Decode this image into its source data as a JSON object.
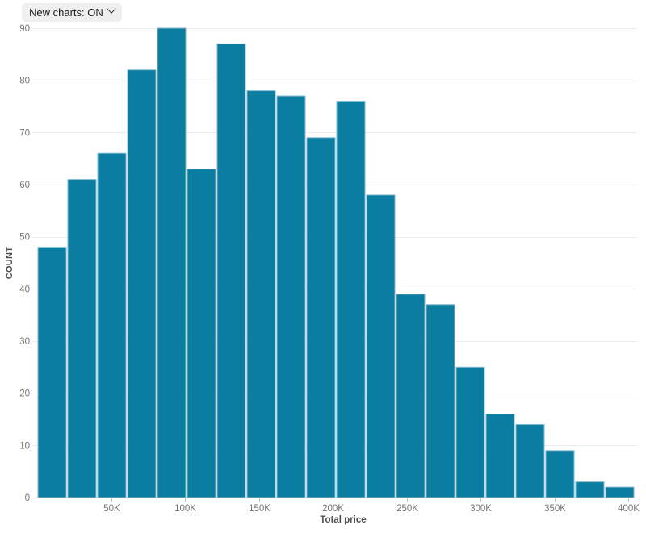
{
  "controls": {
    "new_charts": {
      "label": "New charts: ON",
      "chevron_icon": "chevron-down"
    }
  },
  "chart_data": {
    "type": "bar",
    "subtype": "histogram",
    "title": "",
    "xlabel": "Total price",
    "ylabel": "COUNT",
    "bin_start": 0,
    "bin_size": 20000,
    "values": [
      48,
      61,
      66,
      82,
      90,
      63,
      87,
      78,
      77,
      69,
      76,
      58,
      39,
      37,
      25,
      16,
      14,
      9,
      3,
      2
    ],
    "bin_labels": [
      "0-20K",
      "20K-40K",
      "40K-60K",
      "60K-80K",
      "80K-100K",
      "100K-120K",
      "120K-140K",
      "140K-160K",
      "160K-180K",
      "180K-200K",
      "200K-220K",
      "220K-240K",
      "240K-260K",
      "260K-280K",
      "280K-300K",
      "300K-320K",
      "320K-340K",
      "340K-360K",
      "360K-380K",
      "380K-400K"
    ],
    "x_tick_values": [
      50000,
      100000,
      150000,
      200000,
      250000,
      300000,
      350000,
      400000
    ],
    "x_tick_labels": [
      "50K",
      "100K",
      "150K",
      "200K",
      "250K",
      "300K",
      "350K",
      "400K"
    ],
    "y_ticks": [
      0,
      10,
      20,
      30,
      40,
      50,
      60,
      70,
      80,
      90
    ],
    "xlim": [
      0,
      400000
    ],
    "ylim": [
      0,
      90
    ],
    "grid": "horizontal",
    "legend": "none",
    "colors": {
      "bar_fill": "#0a7da0",
      "bar_stroke": "#85b8ce",
      "grid_line": "#ececec",
      "axis_line": "#9b9b9b",
      "tick_mark": "#c4c4c4",
      "tick_label": "#757575",
      "axis_title": "#4f4f4f"
    }
  }
}
